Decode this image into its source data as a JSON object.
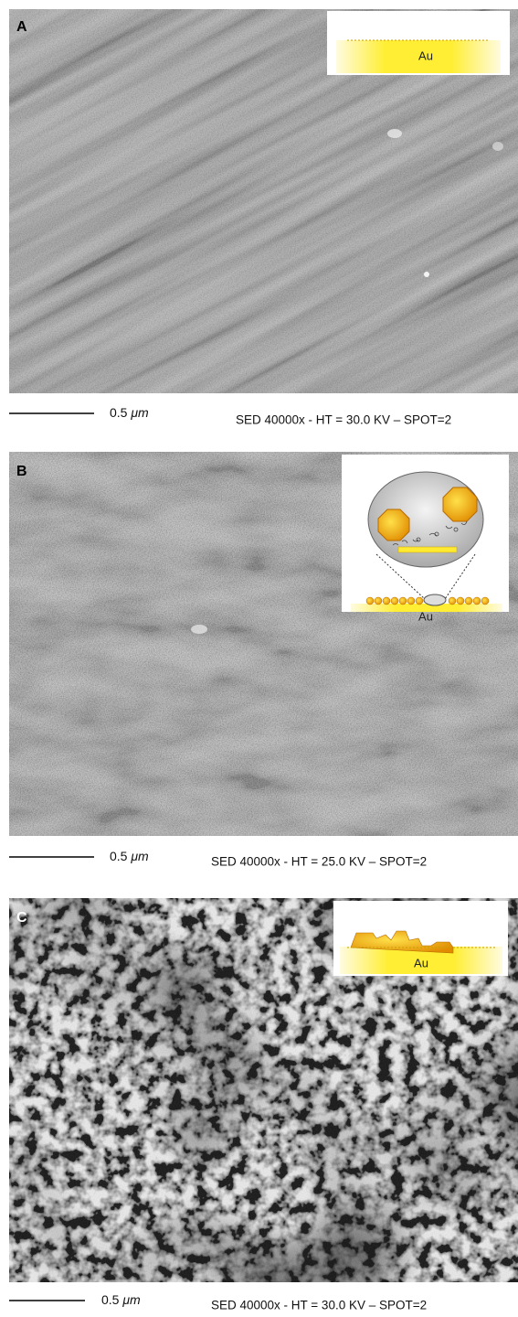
{
  "panels": [
    {
      "label": "A",
      "inset_label": "Au",
      "scale_number": "0.5",
      "scale_unit": "μm",
      "caption": "SED 40000x - HT = 30.0 KV – SPOT=2"
    },
    {
      "label": "B",
      "inset_label": "Au",
      "scale_number": "0.5",
      "scale_unit": "μm",
      "caption": "SED 40000x - HT = 25.0 KV – SPOT=2"
    },
    {
      "label": "C",
      "inset_label": "Au",
      "scale_number": "0.5",
      "scale_unit": "μm",
      "caption": "SED 40000x - HT = 30.0 KV – SPOT=2"
    }
  ]
}
